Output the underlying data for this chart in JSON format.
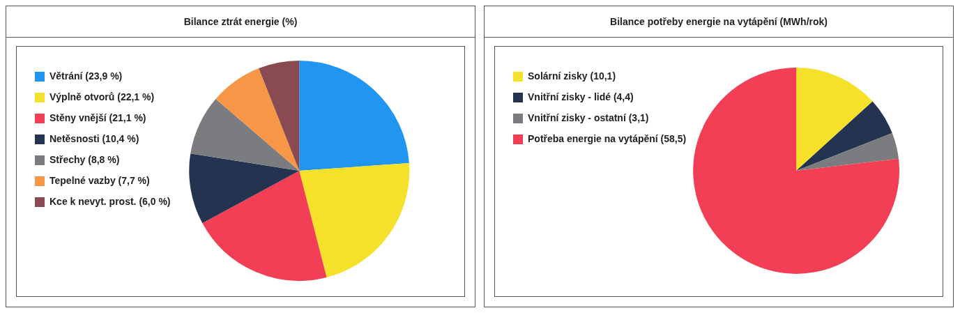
{
  "chart_data": [
    {
      "type": "pie",
      "title": "Bilance ztrát energie (%)",
      "legend": "top left",
      "categories": [
        "Větrání (23,9 %)",
        "Výplně otvorů (22,1 %)",
        "Stěny vnější (21,1 %)",
        "Netěsnosti (10,4 %)",
        "Střechy (8,8 %)",
        "Tepelné vazby (7,7 %)",
        "Kce k nevyt. prost. (6,0 %)"
      ],
      "values": [
        23.9,
        22.1,
        21.1,
        10.4,
        8.8,
        7.7,
        6.0
      ],
      "colors": [
        "#2196f0",
        "#f5e12a",
        "#f23f55",
        "#243450",
        "#7a7c80",
        "#f79646",
        "#8a4a52"
      ]
    },
    {
      "type": "pie",
      "title": "Bilance potřeby energie na vytápění (MWh/rok)",
      "legend": "top left",
      "categories": [
        "Solární zisky (10,1)",
        "Vnitřní zisky - lidé (4,4)",
        "Vnitřní zisky - ostatní (3,1)",
        "Potřeba energie na vytápění (58,5)"
      ],
      "values": [
        10.1,
        4.4,
        3.1,
        58.5
      ],
      "colors": [
        "#f5e12a",
        "#243450",
        "#7a7c80",
        "#f23f55"
      ]
    }
  ]
}
